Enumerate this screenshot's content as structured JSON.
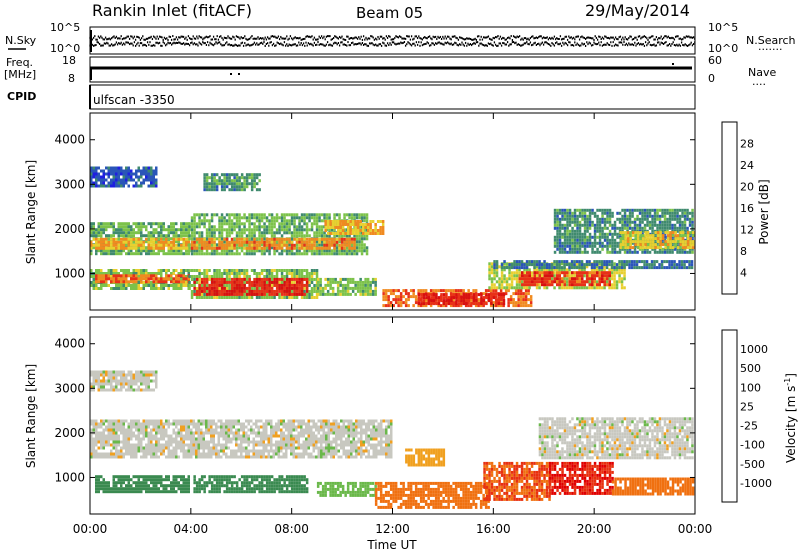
{
  "header": {
    "site": "Rankin Inlet (fitACF)",
    "beam": "Beam 05",
    "date": "29/May/2014"
  },
  "summary": {
    "nsky_label": "N.Sky",
    "nsearch_label": "N.Search",
    "nsearch_dots": ".......",
    "log_top_left": "10^5",
    "log_bot_left": "10^0",
    "log_top_right": "10^5",
    "log_bot_right": "10^0",
    "freq_label": "Freq.",
    "freq_unit": "[MHz]",
    "freq_top": "18",
    "freq_bot": "8",
    "nave_top": "60",
    "nave_bot": "0",
    "nave_label": "Nave",
    "nave_dots": "....",
    "cpid_label": "CPID",
    "cpid_value": "ulfscan -3350"
  },
  "axes": {
    "ylabel": "Slant Range [km]",
    "xlabel": "Time UT",
    "y_ticks": [
      "1000",
      "2000",
      "3000",
      "4000"
    ],
    "x_ticks": [
      "00:00",
      "04:00",
      "08:00",
      "12:00",
      "16:00",
      "20:00",
      "00:00"
    ]
  },
  "colorbars": {
    "power": {
      "label": "Power [dB]",
      "ticks": [
        "4",
        "8",
        "12",
        "16",
        "20",
        "24",
        "28"
      ],
      "colors": [
        "#1f1fe0",
        "#2a55b8",
        "#3f8a6e",
        "#7cc24a",
        "#e8d030",
        "#f08a20",
        "#e83018",
        "#d81010"
      ]
    },
    "velocity": {
      "label": "Velocity [m s",
      "label_sup": "-1",
      "label_end": "]",
      "ticks": [
        "1000",
        "500",
        "100",
        "25",
        "-25",
        "-100",
        "-500",
        "-1000"
      ],
      "colors": [
        "#2030c0",
        "#3a6aa8",
        "#3a8a50",
        "#6ab84a",
        "#c8c8c0",
        "#f0a020",
        "#f07010",
        "#e83010",
        "#e00000"
      ]
    }
  },
  "chart_data": [
    {
      "type": "heatmap",
      "title": "",
      "xlabel": "Time UT",
      "ylabel": "Slant Range [km]",
      "x_ticks": [
        "00:00",
        "04:00",
        "08:00",
        "12:00",
        "16:00",
        "20:00",
        "00:00"
      ],
      "y_ticks": [
        1000,
        2000,
        3000,
        4000
      ],
      "xlim_hours": [
        0,
        24
      ],
      "ylim": [
        180,
        4600
      ],
      "colorbar": "Power [dB]",
      "colorbar_ticks": [
        4,
        8,
        12,
        16,
        20,
        24,
        28
      ],
      "bands": [
        {
          "t0": 0.0,
          "t1": 3.9,
          "r0": 1450,
          "r1": 2150,
          "value": 13
        },
        {
          "t0": 0.0,
          "t1": 3.9,
          "r0": 1550,
          "r1": 1800,
          "value": 20
        },
        {
          "t0": 0.0,
          "t1": 3.9,
          "r0": 650,
          "r1": 1100,
          "value": 14
        },
        {
          "t0": 0.2,
          "t1": 3.9,
          "r0": 780,
          "r1": 980,
          "value": 24
        },
        {
          "t0": 3.9,
          "t1": 11.0,
          "r0": 1450,
          "r1": 2350,
          "value": 13
        },
        {
          "t0": 4.0,
          "t1": 10.5,
          "r0": 1550,
          "r1": 1800,
          "value": 22
        },
        {
          "t0": 3.9,
          "t1": 9.0,
          "r0": 450,
          "r1": 1100,
          "value": 14
        },
        {
          "t0": 4.1,
          "t1": 8.6,
          "r0": 550,
          "r1": 900,
          "value": 28
        },
        {
          "t0": 9.0,
          "t1": 11.3,
          "r0": 500,
          "r1": 900,
          "value": 14
        },
        {
          "t0": 9.3,
          "t1": 11.6,
          "r0": 1900,
          "r1": 2200,
          "value": 20
        },
        {
          "t0": 11.6,
          "t1": 17.5,
          "r0": 250,
          "r1": 650,
          "value": 24
        },
        {
          "t0": 13.0,
          "t1": 16.4,
          "r0": 300,
          "r1": 560,
          "value": 28
        },
        {
          "t0": 15.8,
          "t1": 21.2,
          "r0": 700,
          "r1": 1250,
          "value": 16
        },
        {
          "t0": 17.0,
          "t1": 20.6,
          "r0": 750,
          "r1": 1050,
          "value": 26
        },
        {
          "t0": 16.0,
          "t1": 23.9,
          "r0": 1100,
          "r1": 1300,
          "value": 8
        },
        {
          "t0": 18.4,
          "t1": 23.9,
          "r0": 1500,
          "r1": 2450,
          "value": 10
        },
        {
          "t0": 21.0,
          "t1": 23.9,
          "r0": 1600,
          "r1": 1950,
          "value": 18
        },
        {
          "t0": 0.0,
          "t1": 2.6,
          "r0": 2950,
          "r1": 3400,
          "value": 6
        },
        {
          "t0": 4.5,
          "t1": 6.7,
          "r0": 2900,
          "r1": 3250,
          "value": 10
        }
      ]
    },
    {
      "type": "heatmap",
      "title": "",
      "xlabel": "Time UT",
      "ylabel": "Slant Range [km]",
      "x_ticks": [
        "00:00",
        "04:00",
        "08:00",
        "12:00",
        "16:00",
        "20:00",
        "00:00"
      ],
      "y_ticks": [
        1000,
        2000,
        3000,
        4000
      ],
      "xlim_hours": [
        0,
        24
      ],
      "ylim": [
        180,
        4600
      ],
      "colorbar": "Velocity [m s-1]",
      "colorbar_ticks": [
        1000,
        500,
        100,
        25,
        -25,
        -100,
        -500,
        -1000
      ],
      "bands": [
        {
          "t0": 0.0,
          "t1": 12.0,
          "r0": 1450,
          "r1": 2300,
          "value": 0
        },
        {
          "t0": 17.8,
          "t1": 23.9,
          "r0": 1450,
          "r1": 2350,
          "value": 0
        },
        {
          "t0": 0.2,
          "t1": 3.9,
          "r0": 700,
          "r1": 1050,
          "value": 160
        },
        {
          "t0": 4.1,
          "t1": 8.6,
          "r0": 650,
          "r1": 1050,
          "value": 200
        },
        {
          "t0": 9.0,
          "t1": 11.3,
          "r0": 600,
          "r1": 900,
          "value": 60
        },
        {
          "t0": 11.3,
          "t1": 15.8,
          "r0": 300,
          "r1": 900,
          "value": -200
        },
        {
          "t0": 15.6,
          "t1": 18.2,
          "r0": 500,
          "r1": 1350,
          "value": -500
        },
        {
          "t0": 18.2,
          "t1": 20.7,
          "r0": 650,
          "r1": 1350,
          "value": -1000
        },
        {
          "t0": 20.7,
          "t1": 23.9,
          "r0": 600,
          "r1": 1000,
          "value": -300
        },
        {
          "t0": 12.5,
          "t1": 14.0,
          "r0": 1250,
          "r1": 1650,
          "value": -60
        },
        {
          "t0": 0.0,
          "t1": 2.6,
          "r0": 2950,
          "r1": 3400,
          "value": 0
        }
      ]
    }
  ]
}
